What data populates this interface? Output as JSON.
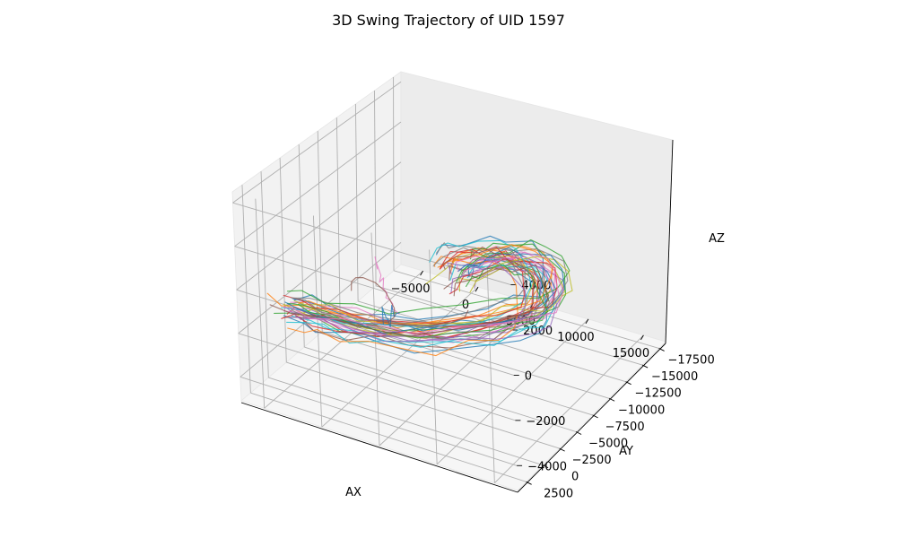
{
  "chart_data": {
    "type": "line3d",
    "title": "3D Swing Trajectory of UID 1597",
    "xlabel": "AX",
    "ylabel": "AY",
    "zlabel": "AZ",
    "xticks": [
      {
        "value": -5000,
        "label": "−5000"
      },
      {
        "value": 0,
        "label": "0"
      },
      {
        "value": 5000,
        "label": "5000"
      },
      {
        "value": 10000,
        "label": "10000"
      },
      {
        "value": 15000,
        "label": "15000"
      }
    ],
    "yticks": [
      {
        "value": -17500,
        "label": "−17500"
      },
      {
        "value": -15000,
        "label": "−15000"
      },
      {
        "value": -12500,
        "label": "−12500"
      },
      {
        "value": -10000,
        "label": "−10000"
      },
      {
        "value": -7500,
        "label": "−7500"
      },
      {
        "value": -5000,
        "label": "−5000"
      },
      {
        "value": -2500,
        "label": "−2500"
      },
      {
        "value": 0,
        "label": "0"
      },
      {
        "value": 2500,
        "label": "2500"
      }
    ],
    "zticks": [
      {
        "value": -4000,
        "label": "−4000"
      },
      {
        "value": -2000,
        "label": "−2000"
      },
      {
        "value": 0,
        "label": "0"
      },
      {
        "value": 2000,
        "label": "2000"
      },
      {
        "value": 4000,
        "label": "4000"
      }
    ],
    "colors": [
      "#1f77b4",
      "#ff7f0e",
      "#2ca02c",
      "#d62728",
      "#9467bd",
      "#8c564b",
      "#e377c2",
      "#7f7f7f",
      "#bcbd22",
      "#17becf"
    ],
    "template_swing": {
      "ax": [
        -7000,
        -6000,
        -4500,
        -2500,
        -500,
        1500,
        3500,
        5500,
        7000,
        8000,
        8400,
        8500,
        8500,
        8600,
        9000,
        9500,
        10000,
        10500,
        11000
      ],
      "ay": [
        -3000,
        -3300,
        -3600,
        -4200,
        -5200,
        -6800,
        -8800,
        -11000,
        -12800,
        -13800,
        -14200,
        -13800,
        -12000,
        -9000,
        -6000,
        -3000,
        -500,
        1500,
        2800
      ],
      "az": [
        -2600,
        -2700,
        -2800,
        -3000,
        -3200,
        -3500,
        -3700,
        -3800,
        -3700,
        -3500,
        -2800,
        -1800,
        -600,
        600,
        1500,
        2300,
        2900,
        3300,
        3400
      ]
    },
    "num_typical_swings": 38,
    "odd_series": [
      {
        "name": "pink-outlier",
        "color": "#e377c2",
        "ax": [
          3000,
          3200,
          3100,
          3400,
          3300,
          3600,
          3500,
          3800,
          3700,
          4000,
          4200,
          4100,
          4400,
          4600
        ],
        "ay": [
          400,
          450,
          350,
          300,
          380,
          260,
          220,
          150,
          200,
          100,
          50,
          0,
          -80,
          -150
        ],
        "az": [
          2200,
          1700,
          1900,
          1400,
          1100,
          1300,
          800,
          600,
          400,
          300,
          150,
          -100,
          -200,
          -300
        ]
      },
      {
        "name": "blue-outlier",
        "color": "#1f77b4",
        "ax": [
          2000,
          1800,
          2200,
          2500,
          2800,
          3000,
          3100,
          3300,
          3600,
          3900,
          4200
        ],
        "ay": [
          -2000,
          -2200,
          -2100,
          -1800,
          -1600,
          -1400,
          -1300,
          -1200,
          -1000,
          -900,
          -800
        ],
        "az": [
          -1700,
          -1000,
          -1400,
          -1300,
          -1500,
          -1500,
          -1200,
          -400,
          -800,
          -600,
          -500
        ]
      },
      {
        "name": "brown-outlier",
        "color": "#8c564b",
        "ax": [
          -4000,
          -3000,
          -1500,
          0,
          1500,
          2500,
          3000,
          2500,
          1500,
          0,
          1500,
          3000,
          4500,
          5500,
          6000
        ],
        "ay": [
          -7000,
          -5500,
          -3800,
          -2500,
          -1800,
          -1600,
          -2000,
          -2800,
          -3500,
          -4200,
          -5500,
          -6500,
          -7500,
          -7800,
          -7500
        ],
        "az": [
          -2500,
          -1500,
          -600,
          0,
          200,
          0,
          -800,
          -1500,
          -2100,
          -2500,
          -2800,
          -2900,
          -2800,
          -2500,
          -2000
        ]
      }
    ]
  }
}
